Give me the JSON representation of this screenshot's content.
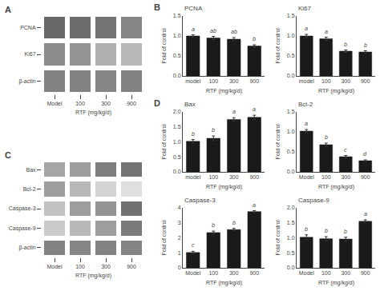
{
  "chart_data": [
    {
      "type": "heatmap",
      "rows": [
        "PCNA",
        "Ki67",
        "β-actin"
      ],
      "categories": [
        "Model",
        "100",
        "300",
        "900"
      ],
      "cells": [
        [
          0.85,
          0.82,
          0.78,
          0.68
        ],
        [
          0.65,
          0.6,
          0.45,
          0.4
        ],
        [
          0.7,
          0.7,
          0.68,
          0.7
        ]
      ],
      "zlim": [
        0,
        1
      ],
      "xlabel": "RTF (mg/kg/d)",
      "annotations": [
        {
          "text": "A"
        }
      ]
    },
    {
      "type": "bar",
      "title": "PCNA",
      "categories": [
        "model",
        "100",
        "300",
        "900"
      ],
      "values": [
        1.0,
        0.95,
        0.92,
        0.75
      ],
      "errors": [
        0.03,
        0.04,
        0.04,
        0.03
      ],
      "annotations": [
        {
          "text": "B"
        },
        {
          "x": "model",
          "text": "a"
        },
        {
          "x": "100",
          "text": "ab"
        },
        {
          "x": "300",
          "text": "ab"
        },
        {
          "x": "900",
          "text": "b"
        }
      ],
      "ylabel": "Fold of control",
      "xlabel": "RTF (mg/kg/d)",
      "ylim": [
        0,
        1.5
      ],
      "yticks": [
        {
          "value": 0,
          "label": "0.0"
        },
        0.5,
        {
          "value": 1,
          "label": "1.0"
        },
        1.5
      ],
      "color": "#1a1a1a",
      "grid": false
    },
    {
      "type": "bar",
      "title": "Ki67",
      "categories": [
        "model",
        "100",
        "300",
        "900"
      ],
      "values": [
        1.0,
        0.93,
        0.62,
        0.6
      ],
      "errors": [
        0.04,
        0.04,
        0.03,
        0.03
      ],
      "annotations": [
        {
          "x": "model",
          "text": "a"
        },
        {
          "x": "100",
          "text": "a"
        },
        {
          "x": "300",
          "text": "b"
        },
        {
          "x": "900",
          "text": "b"
        }
      ],
      "ylabel": "Fold of control",
      "xlabel": "RTF (mg/kg/d)",
      "ylim": [
        0,
        1.5
      ],
      "yticks": [
        {
          "value": 0,
          "label": "0.0"
        },
        0.5,
        {
          "value": 1,
          "label": "1.0"
        },
        1.5
      ],
      "color": "#1a1a1a",
      "grid": false
    },
    {
      "type": "heatmap",
      "rows": [
        "Bax",
        "Bcl-2",
        "Caspase-3",
        "Caspase-9",
        "β-actin"
      ],
      "categories": [
        "Model",
        "100",
        "300",
        "900"
      ],
      "cells": [
        [
          0.5,
          0.55,
          0.72,
          0.78
        ],
        [
          0.55,
          0.4,
          0.25,
          0.18
        ],
        [
          0.35,
          0.55,
          0.6,
          0.8
        ],
        [
          0.3,
          0.4,
          0.55,
          0.75
        ],
        [
          0.7,
          0.68,
          0.7,
          0.69
        ]
      ],
      "zlim": [
        0,
        1
      ],
      "xlabel": "RTF (mg/kg/d)",
      "annotations": [
        {
          "text": "C"
        }
      ]
    },
    {
      "type": "bar",
      "title": "Bax",
      "categories": [
        "model",
        "100",
        "300",
        "900"
      ],
      "values": [
        1.02,
        1.12,
        1.75,
        1.82
      ],
      "errors": [
        0.06,
        0.08,
        0.06,
        0.07
      ],
      "annotations": [
        {
          "text": "D"
        },
        {
          "x": "model",
          "text": "b"
        },
        {
          "x": "100",
          "text": "b"
        },
        {
          "x": "300",
          "text": "a"
        },
        {
          "x": "900",
          "text": "a"
        }
      ],
      "ylabel": "Fold of control",
      "xlabel": "RTF (mg/kg/d)",
      "ylim": [
        0,
        2.0
      ],
      "yticks": [
        {
          "value": 0,
          "label": "0.0"
        },
        0.5,
        {
          "value": 1,
          "label": "1.0"
        },
        1.5,
        {
          "value": 2,
          "label": "2.0"
        }
      ],
      "color": "#1a1a1a",
      "grid": false
    },
    {
      "type": "bar",
      "title": "Bcl-2",
      "categories": [
        "Model",
        "100",
        "300",
        "900"
      ],
      "values": [
        1.02,
        0.68,
        0.38,
        0.28
      ],
      "errors": [
        0.04,
        0.04,
        0.03,
        0.02
      ],
      "annotations": [
        {
          "x": "Model",
          "text": "a"
        },
        {
          "x": "100",
          "text": "b"
        },
        {
          "x": "300",
          "text": "c"
        },
        {
          "x": "900",
          "text": "d"
        }
      ],
      "ylabel": "Fold of control",
      "xlabel": "RTF (mg/kg/d)",
      "ylim": [
        0,
        1.5
      ],
      "yticks": [
        {
          "value": 0,
          "label": "0.0"
        },
        0.5,
        {
          "value": 1,
          "label": "1.0"
        },
        1.5
      ],
      "color": "#1a1a1a",
      "grid": false
    },
    {
      "type": "bar",
      "title": "Caspase-3",
      "categories": [
        "Model",
        "100",
        "300",
        "900"
      ],
      "values": [
        1.02,
        2.35,
        2.55,
        3.75
      ],
      "errors": [
        0.08,
        0.1,
        0.08,
        0.06
      ],
      "annotations": [
        {
          "x": "Model",
          "text": "c"
        },
        {
          "x": "100",
          "text": "b"
        },
        {
          "x": "300",
          "text": "b"
        },
        {
          "x": "900",
          "text": "a"
        }
      ],
      "ylabel": "Fold of control",
      "xlabel": "RTF (mg/kg/d)",
      "ylim": [
        0,
        4
      ],
      "yticks": [
        0,
        1,
        2,
        3,
        4
      ],
      "color": "#1a1a1a",
      "grid": false
    },
    {
      "type": "bar",
      "title": "Caspase-9",
      "categories": [
        "Model",
        "100",
        "300",
        "900"
      ],
      "values": [
        1.02,
        0.97,
        0.96,
        1.55
      ],
      "errors": [
        0.08,
        0.07,
        0.06,
        0.05
      ],
      "annotations": [
        {
          "x": "Model",
          "text": "b"
        },
        {
          "x": "100",
          "text": "b"
        },
        {
          "x": "300",
          "text": "b"
        },
        {
          "x": "900",
          "text": "a"
        }
      ],
      "ylabel": "Fold of control",
      "xlabel": "RTF (mg/kg/d)",
      "ylim": [
        0,
        2.0
      ],
      "yticks": [
        {
          "value": 0,
          "label": "0.0"
        },
        0.5,
        {
          "value": 1,
          "label": "1.0"
        },
        1.5,
        {
          "value": 2,
          "label": "2.0"
        }
      ],
      "color": "#1a1a1a",
      "grid": false
    }
  ]
}
